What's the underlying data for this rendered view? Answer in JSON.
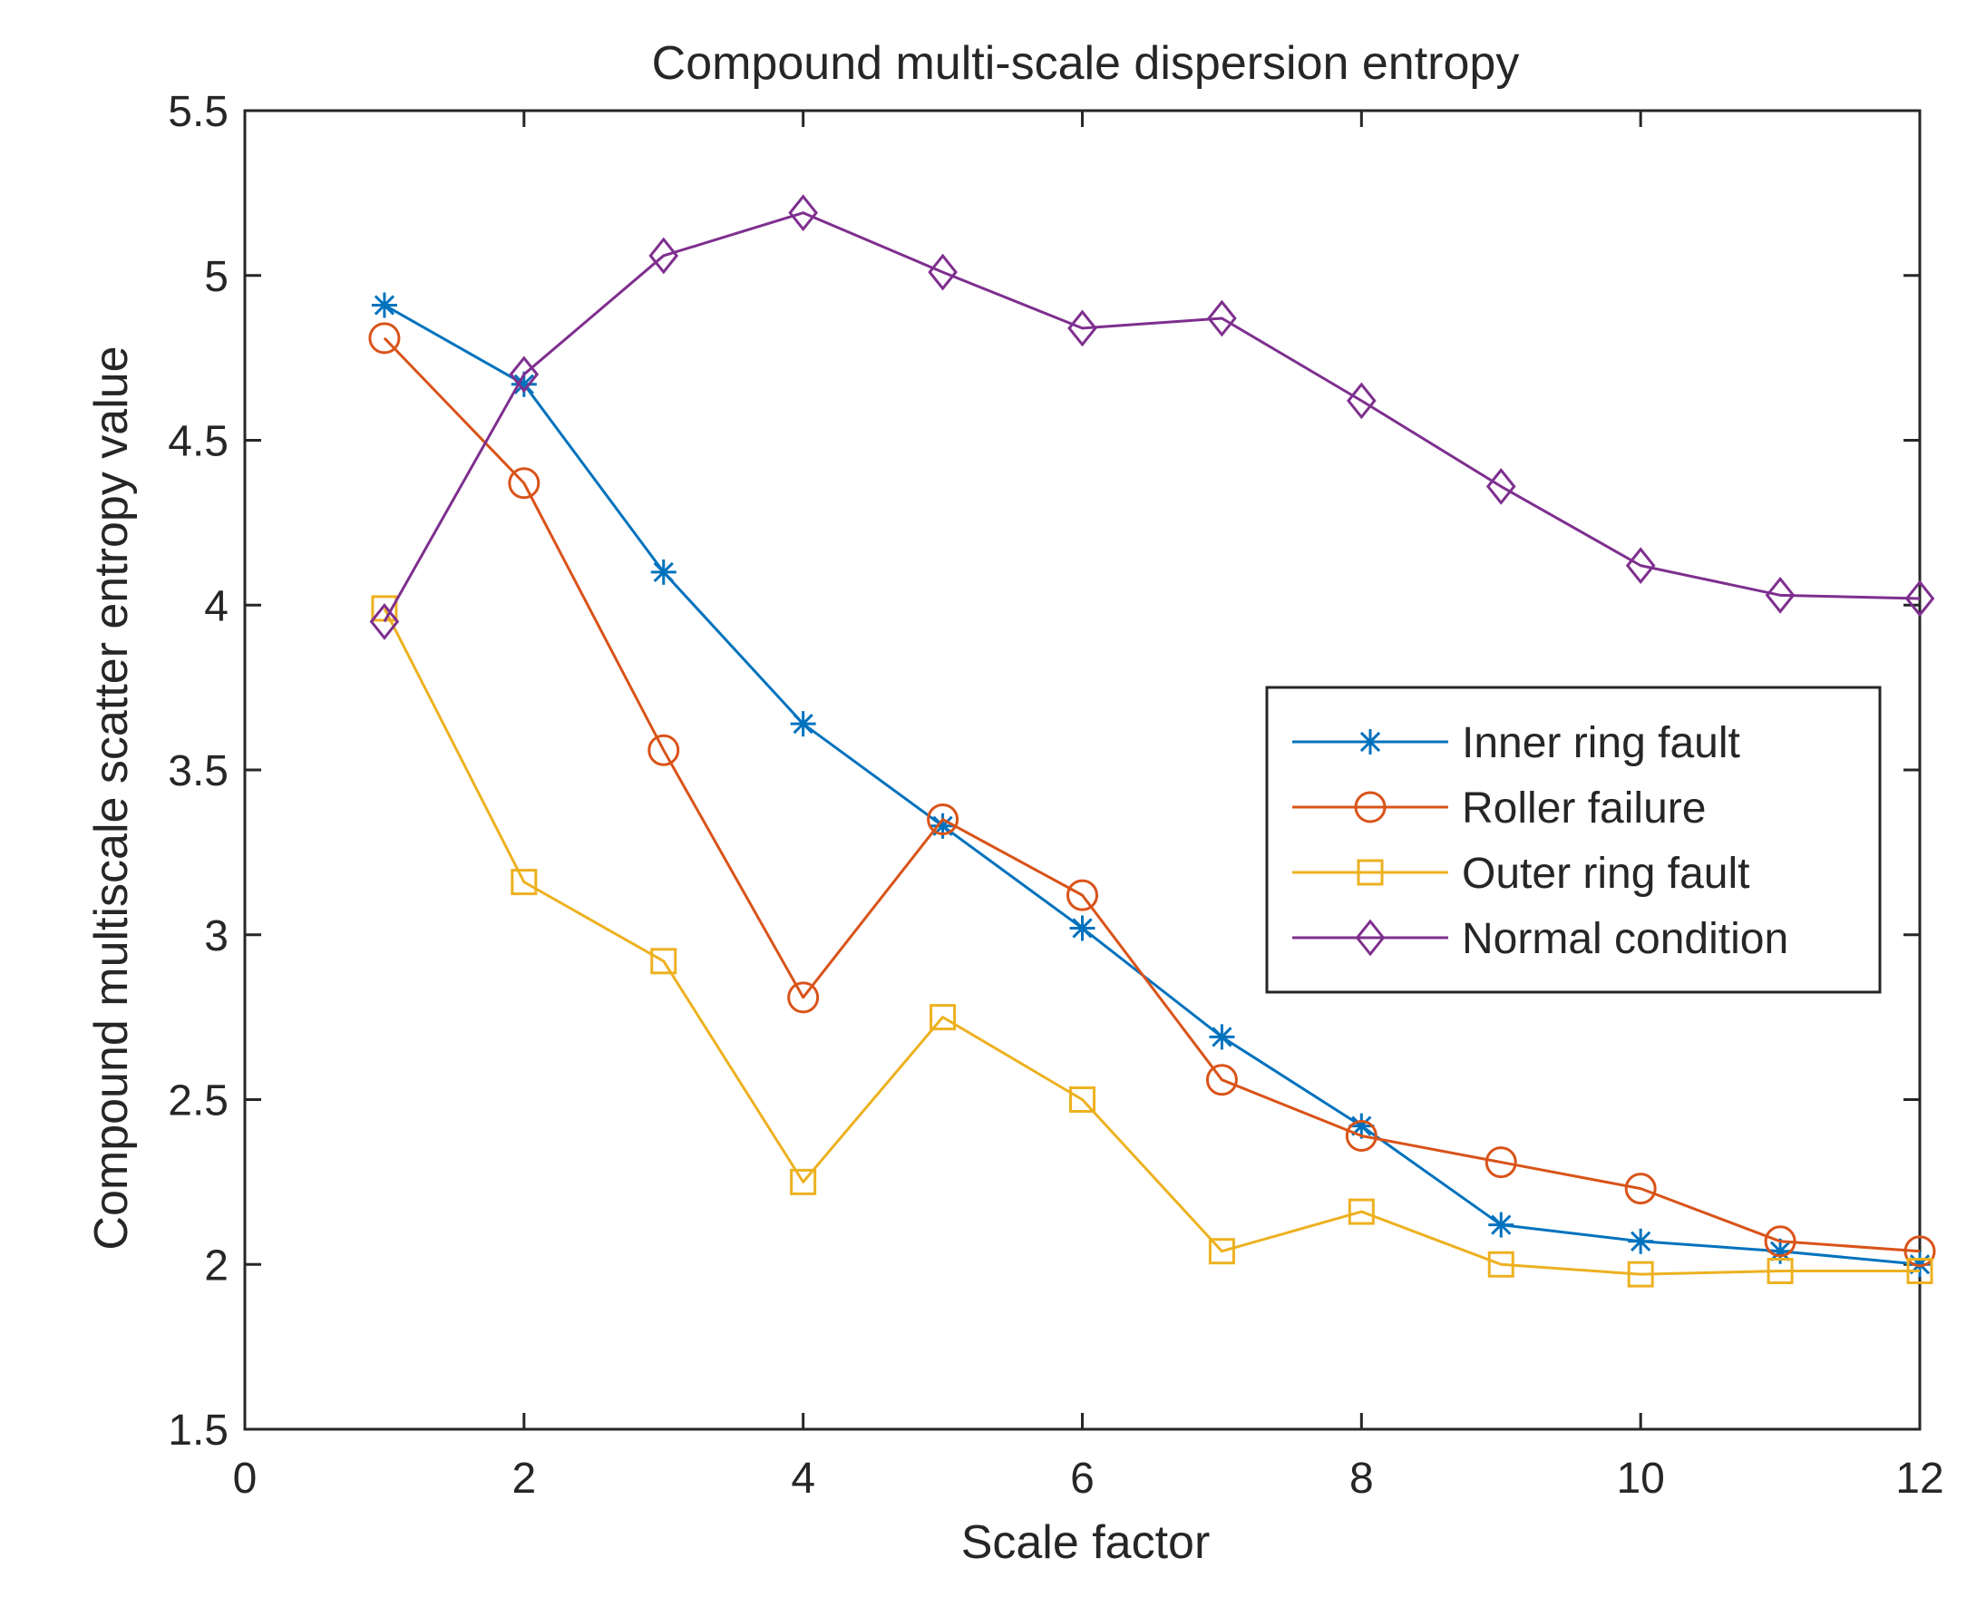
{
  "chart_data": {
    "type": "line",
    "title": "Compound multi-scale dispersion entropy",
    "xlabel": "Scale factor",
    "ylabel": "Compound multiscale scatter entropy value",
    "xlim": [
      0,
      12
    ],
    "ylim": [
      1.5,
      5.5
    ],
    "xticks": [
      "0",
      "2",
      "4",
      "6",
      "8",
      "10",
      "12"
    ],
    "yticks": [
      "1.5",
      "2",
      "2.5",
      "3",
      "3.5",
      "4",
      "4.5",
      "5",
      "5.5"
    ],
    "grid": false,
    "legend_position": "center-right",
    "x": [
      1,
      2,
      3,
      4,
      5,
      6,
      7,
      8,
      9,
      10,
      11,
      12
    ],
    "series": [
      {
        "name": "Inner ring fault",
        "color": "#0072BD",
        "marker": "asterisk",
        "values": [
          4.91,
          4.67,
          4.1,
          3.64,
          3.33,
          3.02,
          2.69,
          2.42,
          2.12,
          2.07,
          2.04,
          2.0
        ]
      },
      {
        "name": "Roller failure",
        "color": "#D95319",
        "marker": "circle",
        "values": [
          4.81,
          4.37,
          3.56,
          2.81,
          3.35,
          3.12,
          2.56,
          2.39,
          2.31,
          2.23,
          2.07,
          2.04
        ]
      },
      {
        "name": "Outer ring fault",
        "color": "#EDB120",
        "marker": "square",
        "values": [
          3.99,
          3.16,
          2.92,
          2.25,
          2.75,
          2.5,
          2.04,
          2.16,
          2.0,
          1.97,
          1.98,
          1.98
        ]
      },
      {
        "name": "Normal condition",
        "color": "#7E2F8E",
        "marker": "diamond",
        "values": [
          3.95,
          4.7,
          5.06,
          5.19,
          5.01,
          4.84,
          4.87,
          4.62,
          4.36,
          4.12,
          4.03,
          4.02
        ]
      }
    ]
  }
}
